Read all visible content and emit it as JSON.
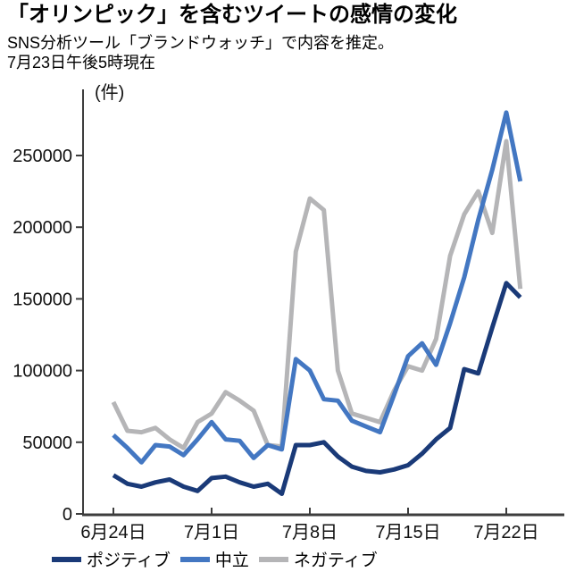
{
  "header": {
    "title": "「オリンピック」を含むツイートの感情の変化",
    "subtitle_line1": "SNS分析ツール「ブランドウォッチ」で内容を推定。",
    "subtitle_line2": "7月23日午後5時現在"
  },
  "chart_data": {
    "type": "line",
    "title": "「オリンピック」を含むツイートの感情の変化",
    "unit_label": "(件)",
    "ylabel": "件",
    "ylim": [
      0,
      296000
    ],
    "grid": false,
    "legend_position": "bottom",
    "y_ticks": [
      0,
      50000,
      100000,
      150000,
      200000,
      250000
    ],
    "x_tick_labels": [
      "6月24日",
      "7月1日",
      "7月8日",
      "7月15日",
      "7月22日"
    ],
    "x_tick_indices": [
      0,
      7,
      14,
      21,
      28
    ],
    "dates": [
      "6月24日",
      "6月25日",
      "6月26日",
      "6月27日",
      "6月28日",
      "6月29日",
      "6月30日",
      "7月1日",
      "7月2日",
      "7月3日",
      "7月4日",
      "7月5日",
      "7月6日",
      "7月7日",
      "7月8日",
      "7月9日",
      "7月10日",
      "7月11日",
      "7月12日",
      "7月13日",
      "7月14日",
      "7月15日",
      "7月16日",
      "7月17日",
      "7月18日",
      "7月19日",
      "7月20日",
      "7月21日",
      "7月22日",
      "7月23日"
    ],
    "series": [
      {
        "name": "ポジティブ",
        "color": "#1a3a78",
        "values": [
          27000,
          21000,
          19000,
          22000,
          24000,
          19000,
          16000,
          25000,
          26000,
          22000,
          19000,
          21000,
          14000,
          48000,
          48000,
          50000,
          40000,
          33000,
          30000,
          29000,
          31000,
          34000,
          42000,
          52000,
          60000,
          101000,
          98000,
          130000,
          161000,
          151000
        ]
      },
      {
        "name": "中立",
        "color": "#4377c2",
        "values": [
          55000,
          46000,
          36000,
          48000,
          47000,
          41000,
          52000,
          64000,
          52000,
          51000,
          39000,
          48000,
          45000,
          108000,
          100000,
          80000,
          79000,
          65000,
          61000,
          57000,
          83000,
          110000,
          119000,
          104000,
          133000,
          165000,
          205000,
          240000,
          280000,
          232000
        ]
      },
      {
        "name": "ネガティブ",
        "color": "#b5b5b7",
        "values": [
          78000,
          58000,
          57000,
          60000,
          52000,
          46000,
          64000,
          70000,
          85000,
          79000,
          72000,
          48000,
          47000,
          183000,
          220000,
          212000,
          100000,
          70000,
          67000,
          64000,
          86000,
          103000,
          100000,
          122000,
          180000,
          209000,
          225000,
          196000,
          260000,
          157000
        ]
      }
    ],
    "axis_color": "#3d3d3d",
    "label_color": "#111111"
  }
}
